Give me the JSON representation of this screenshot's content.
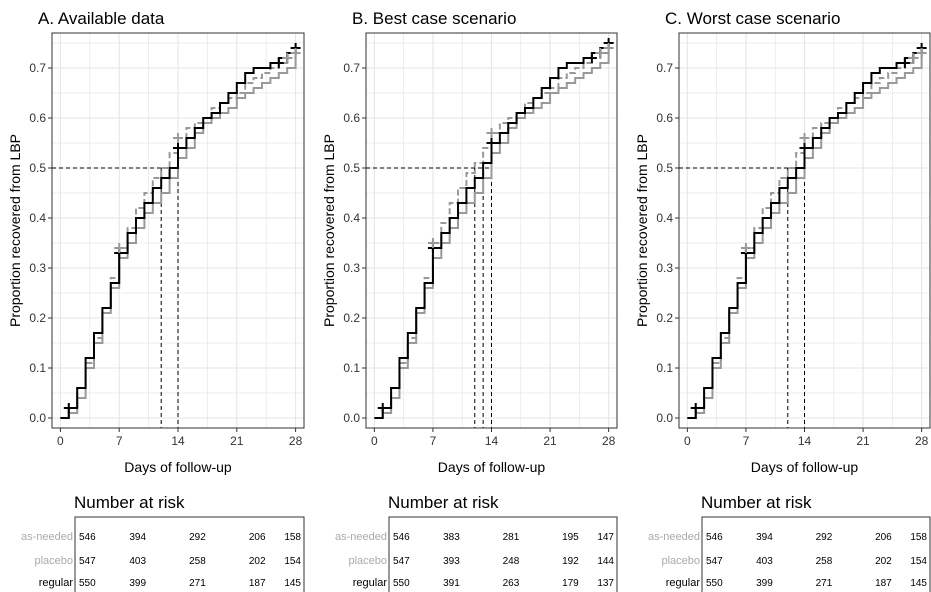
{
  "colors": {
    "regular": "#000000",
    "placebo": "#999999",
    "as_needed": "#999999",
    "grid": "#e6e6e6",
    "as_needed_label": "#aaaaaa",
    "placebo_label": "#aaaaaa",
    "regular_label": "#000000"
  },
  "chart_data": [
    {
      "type": "line",
      "title": "A. Available data",
      "xlabel": "Days of follow-up",
      "ylabel": "Proportion recovered from LBP",
      "xlim": [
        -1,
        29
      ],
      "ylim": [
        -0.02,
        0.77
      ],
      "xticks": [
        "0",
        "7",
        "14",
        "21",
        "28"
      ],
      "yticks": [
        "0.0",
        "0.1",
        "0.2",
        "0.3",
        "0.4",
        "0.5",
        "0.6",
        "0.7"
      ],
      "grid": true,
      "median_line": 0.5,
      "medians": [
        12,
        14
      ],
      "series": [
        {
          "key": "regular",
          "x": [
            0,
            1,
            2,
            3,
            4,
            5,
            6,
            7,
            8,
            9,
            10,
            11,
            12,
            13,
            14,
            15,
            16,
            17,
            18,
            19,
            20,
            21,
            22,
            23,
            24,
            25,
            26,
            27,
            28
          ],
          "values": [
            0.0,
            0.02,
            0.06,
            0.12,
            0.17,
            0.22,
            0.27,
            0.33,
            0.37,
            0.4,
            0.43,
            0.46,
            0.48,
            0.5,
            0.54,
            0.56,
            0.58,
            0.6,
            0.61,
            0.63,
            0.65,
            0.67,
            0.69,
            0.7,
            0.7,
            0.71,
            0.72,
            0.73,
            0.74
          ]
        },
        {
          "key": "placebo",
          "x": [
            0,
            1,
            2,
            3,
            4,
            5,
            6,
            7,
            8,
            9,
            10,
            11,
            12,
            13,
            14,
            15,
            16,
            17,
            18,
            19,
            20,
            21,
            22,
            23,
            24,
            25,
            26,
            27,
            28
          ],
          "values": [
            0.0,
            0.01,
            0.04,
            0.1,
            0.15,
            0.21,
            0.26,
            0.32,
            0.35,
            0.38,
            0.41,
            0.43,
            0.45,
            0.48,
            0.52,
            0.54,
            0.57,
            0.59,
            0.6,
            0.61,
            0.62,
            0.64,
            0.65,
            0.66,
            0.67,
            0.68,
            0.69,
            0.7,
            0.72
          ]
        },
        {
          "key": "as_needed",
          "x": [
            0,
            1,
            2,
            3,
            4,
            5,
            6,
            7,
            8,
            9,
            10,
            11,
            12,
            13,
            14,
            15,
            16,
            17,
            18,
            19,
            20,
            21,
            22,
            23,
            24,
            25,
            26,
            27,
            28
          ],
          "values": [
            0.0,
            0.02,
            0.06,
            0.11,
            0.16,
            0.22,
            0.28,
            0.34,
            0.38,
            0.42,
            0.45,
            0.48,
            0.5,
            0.53,
            0.56,
            0.58,
            0.59,
            0.6,
            0.62,
            0.63,
            0.64,
            0.65,
            0.67,
            0.68,
            0.69,
            0.7,
            0.71,
            0.72,
            0.73
          ]
        }
      ],
      "censor_marks": [
        {
          "key": "regular",
          "x": [
            1,
            7,
            14,
            26,
            27,
            28
          ],
          "y": [
            0.02,
            0.33,
            0.54,
            0.71,
            0.72,
            0.74
          ]
        },
        {
          "key": "as_needed",
          "x": [
            7,
            14,
            27,
            28
          ],
          "y": [
            0.34,
            0.56,
            0.72,
            0.73
          ]
        }
      ],
      "risk_table": {
        "title": "Number at risk",
        "rows": [
          {
            "key": "as_needed",
            "label": "as-needed",
            "values": [
              "546",
              "394",
              "292",
              "206",
              "158"
            ]
          },
          {
            "key": "placebo",
            "label": "placebo",
            "values": [
              "547",
              "403",
              "258",
              "202",
              "154"
            ]
          },
          {
            "key": "regular",
            "label": "regular",
            "values": [
              "550",
              "399",
              "271",
              "187",
              "145"
            ]
          }
        ]
      }
    },
    {
      "type": "line",
      "title": "B. Best case scenario",
      "xlabel": "Days of follow-up",
      "ylabel": "Proportion recovered from LBP",
      "xlim": [
        -1,
        29
      ],
      "ylim": [
        -0.02,
        0.77
      ],
      "xticks": [
        "0",
        "7",
        "14",
        "21",
        "28"
      ],
      "yticks": [
        "0.0",
        "0.1",
        "0.2",
        "0.3",
        "0.4",
        "0.5",
        "0.6",
        "0.7"
      ],
      "grid": true,
      "median_line": 0.5,
      "medians": [
        12,
        13,
        14
      ],
      "series": [
        {
          "key": "regular",
          "x": [
            0,
            1,
            2,
            3,
            4,
            5,
            6,
            7,
            8,
            9,
            10,
            11,
            12,
            13,
            14,
            15,
            16,
            17,
            18,
            19,
            20,
            21,
            22,
            23,
            24,
            25,
            26,
            27,
            28
          ],
          "values": [
            0.0,
            0.02,
            0.06,
            0.12,
            0.17,
            0.22,
            0.27,
            0.34,
            0.37,
            0.4,
            0.43,
            0.46,
            0.48,
            0.51,
            0.55,
            0.57,
            0.59,
            0.61,
            0.62,
            0.64,
            0.66,
            0.68,
            0.7,
            0.71,
            0.71,
            0.72,
            0.73,
            0.74,
            0.75
          ]
        },
        {
          "key": "placebo",
          "x": [
            0,
            1,
            2,
            3,
            4,
            5,
            6,
            7,
            8,
            9,
            10,
            11,
            12,
            13,
            14,
            15,
            16,
            17,
            18,
            19,
            20,
            21,
            22,
            23,
            24,
            25,
            26,
            27,
            28
          ],
          "values": [
            0.0,
            0.01,
            0.04,
            0.1,
            0.15,
            0.21,
            0.26,
            0.32,
            0.35,
            0.38,
            0.41,
            0.43,
            0.45,
            0.48,
            0.53,
            0.55,
            0.58,
            0.6,
            0.61,
            0.62,
            0.63,
            0.65,
            0.66,
            0.67,
            0.68,
            0.69,
            0.7,
            0.71,
            0.73
          ]
        },
        {
          "key": "as_needed",
          "x": [
            0,
            1,
            2,
            3,
            4,
            5,
            6,
            7,
            8,
            9,
            10,
            11,
            12,
            13,
            14,
            15,
            16,
            17,
            18,
            19,
            20,
            21,
            22,
            23,
            24,
            25,
            26,
            27,
            28
          ],
          "values": [
            0.0,
            0.02,
            0.06,
            0.11,
            0.16,
            0.22,
            0.28,
            0.35,
            0.39,
            0.43,
            0.46,
            0.49,
            0.51,
            0.54,
            0.57,
            0.59,
            0.6,
            0.61,
            0.63,
            0.64,
            0.65,
            0.66,
            0.68,
            0.69,
            0.7,
            0.71,
            0.72,
            0.73,
            0.74
          ]
        }
      ],
      "censor_marks": [
        {
          "key": "regular",
          "x": [
            1,
            7,
            14,
            26,
            27,
            28
          ],
          "y": [
            0.02,
            0.34,
            0.55,
            0.72,
            0.73,
            0.75
          ]
        },
        {
          "key": "as_needed",
          "x": [
            7,
            14,
            27,
            28
          ],
          "y": [
            0.35,
            0.57,
            0.73,
            0.74
          ]
        }
      ],
      "risk_table": {
        "title": "Number at risk",
        "rows": [
          {
            "key": "as_needed",
            "label": "as-needed",
            "values": [
              "546",
              "383",
              "281",
              "195",
              "147"
            ]
          },
          {
            "key": "placebo",
            "label": "placebo",
            "values": [
              "547",
              "393",
              "248",
              "192",
              "144"
            ]
          },
          {
            "key": "regular",
            "label": "regular",
            "values": [
              "550",
              "391",
              "263",
              "179",
              "137"
            ]
          }
        ]
      }
    },
    {
      "type": "line",
      "title": "C. Worst case scenario",
      "xlabel": "Days of follow-up",
      "ylabel": "Proportion recovered from LBP",
      "xlim": [
        -1,
        29
      ],
      "ylim": [
        -0.02,
        0.77
      ],
      "xticks": [
        "0",
        "7",
        "14",
        "21",
        "28"
      ],
      "yticks": [
        "0.0",
        "0.1",
        "0.2",
        "0.3",
        "0.4",
        "0.5",
        "0.6",
        "0.7"
      ],
      "grid": true,
      "median_line": 0.5,
      "medians": [
        12,
        14
      ],
      "series": [
        {
          "key": "regular",
          "x": [
            0,
            1,
            2,
            3,
            4,
            5,
            6,
            7,
            8,
            9,
            10,
            11,
            12,
            13,
            14,
            15,
            16,
            17,
            18,
            19,
            20,
            21,
            22,
            23,
            24,
            25,
            26,
            27,
            28
          ],
          "values": [
            0.0,
            0.02,
            0.06,
            0.12,
            0.17,
            0.22,
            0.27,
            0.33,
            0.37,
            0.4,
            0.43,
            0.46,
            0.48,
            0.5,
            0.54,
            0.56,
            0.58,
            0.6,
            0.61,
            0.63,
            0.65,
            0.67,
            0.69,
            0.7,
            0.7,
            0.71,
            0.72,
            0.73,
            0.74
          ]
        },
        {
          "key": "placebo",
          "x": [
            0,
            1,
            2,
            3,
            4,
            5,
            6,
            7,
            8,
            9,
            10,
            11,
            12,
            13,
            14,
            15,
            16,
            17,
            18,
            19,
            20,
            21,
            22,
            23,
            24,
            25,
            26,
            27,
            28
          ],
          "values": [
            0.0,
            0.01,
            0.04,
            0.1,
            0.15,
            0.21,
            0.26,
            0.32,
            0.35,
            0.38,
            0.41,
            0.43,
            0.45,
            0.48,
            0.52,
            0.54,
            0.57,
            0.59,
            0.6,
            0.61,
            0.62,
            0.64,
            0.65,
            0.66,
            0.67,
            0.68,
            0.69,
            0.7,
            0.72
          ]
        },
        {
          "key": "as_needed",
          "x": [
            0,
            1,
            2,
            3,
            4,
            5,
            6,
            7,
            8,
            9,
            10,
            11,
            12,
            13,
            14,
            15,
            16,
            17,
            18,
            19,
            20,
            21,
            22,
            23,
            24,
            25,
            26,
            27,
            28
          ],
          "values": [
            0.0,
            0.02,
            0.06,
            0.11,
            0.16,
            0.22,
            0.28,
            0.34,
            0.38,
            0.42,
            0.45,
            0.48,
            0.5,
            0.53,
            0.56,
            0.58,
            0.59,
            0.6,
            0.62,
            0.63,
            0.64,
            0.65,
            0.67,
            0.68,
            0.69,
            0.7,
            0.71,
            0.72,
            0.73
          ]
        }
      ],
      "censor_marks": [
        {
          "key": "regular",
          "x": [
            1,
            7,
            14,
            26,
            27,
            28
          ],
          "y": [
            0.02,
            0.33,
            0.54,
            0.71,
            0.72,
            0.74
          ]
        },
        {
          "key": "as_needed",
          "x": [
            7,
            14,
            27,
            28
          ],
          "y": [
            0.34,
            0.56,
            0.72,
            0.73
          ]
        }
      ],
      "risk_table": {
        "title": "Number at risk",
        "rows": [
          {
            "key": "as_needed",
            "label": "as-needed",
            "values": [
              "546",
              "394",
              "292",
              "206",
              "158"
            ]
          },
          {
            "key": "placebo",
            "label": "placebo",
            "values": [
              "547",
              "403",
              "258",
              "202",
              "154"
            ]
          },
          {
            "key": "regular",
            "label": "regular",
            "values": [
              "550",
              "399",
              "271",
              "187",
              "145"
            ]
          }
        ]
      }
    }
  ]
}
